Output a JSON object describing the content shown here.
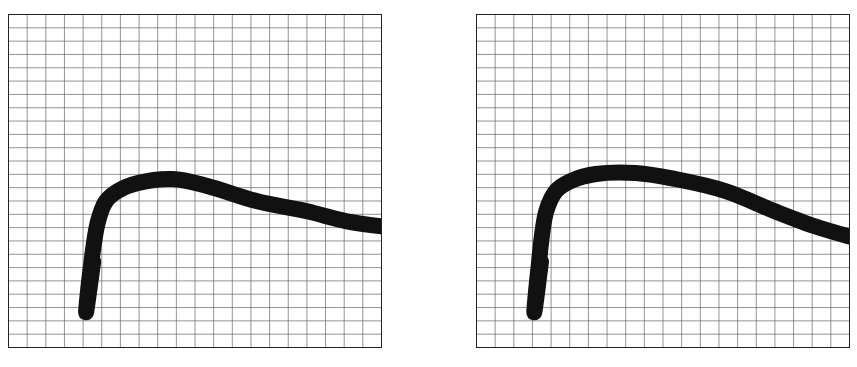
{
  "chart_data": [
    {
      "type": "line",
      "x": [
        22.7,
        20.8,
        21.9,
        24,
        26.1,
        29.3,
        34.7,
        44,
        53.3,
        66.7,
        80,
        90.7,
        100
      ],
      "series": [
        {
          "color": "#111111",
          "values": [
            25.8,
            10.6,
            22.7,
            37.9,
            43.9,
            47,
            49.4,
            50.6,
            48.5,
            43.9,
            40.9,
            37.9,
            36.4
          ]
        }
      ],
      "xlim": [
        0,
        100
      ],
      "ylim": [
        0,
        100
      ],
      "xticks": [
        0,
        5,
        10,
        15,
        20,
        25,
        30,
        35,
        40,
        45,
        50,
        55,
        60,
        65,
        70,
        75,
        80,
        85,
        90,
        95,
        100
      ],
      "yticks": [
        0,
        4,
        8,
        12,
        16,
        20,
        24,
        28,
        32,
        36,
        40,
        44,
        48,
        52,
        56,
        60,
        64,
        68,
        72,
        76,
        80,
        84,
        88,
        92,
        96,
        100
      ],
      "grid": true,
      "tick_labels": false
    },
    {
      "type": "line",
      "x": [
        17.3,
        15.5,
        16.5,
        18.7,
        21.3,
        25.3,
        32,
        42.7,
        53.3,
        66.7,
        80,
        90.7,
        100
      ],
      "series": [
        {
          "color": "#111111",
          "values": [
            25.8,
            10.6,
            22.7,
            40.9,
            47,
            50,
            52.1,
            52.4,
            50.6,
            47,
            40.9,
            36.4,
            33.3
          ]
        }
      ],
      "xlim": [
        0,
        100
      ],
      "ylim": [
        0,
        100
      ],
      "xticks": [
        0,
        5,
        10,
        15,
        20,
        25,
        30,
        35,
        40,
        45,
        50,
        55,
        60,
        65,
        70,
        75,
        80,
        85,
        90,
        95,
        100
      ],
      "yticks": [
        0,
        4,
        8,
        12,
        16,
        20,
        24,
        28,
        32,
        36,
        40,
        44,
        48,
        52,
        56,
        60,
        64,
        68,
        72,
        76,
        80,
        84,
        88,
        92,
        96,
        100
      ],
      "grid": true,
      "tick_labels": false
    }
  ]
}
